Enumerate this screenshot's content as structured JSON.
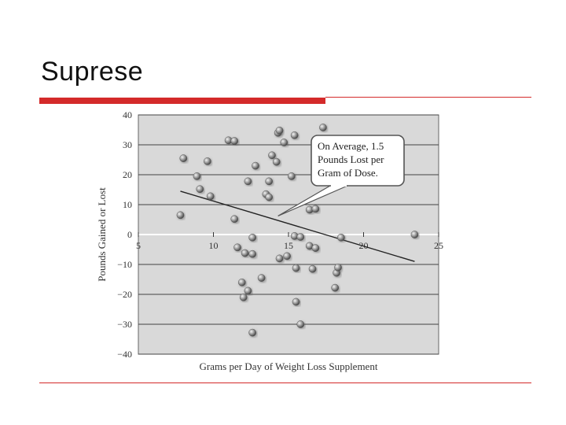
{
  "slide": {
    "title": "Suprese"
  },
  "colors": {
    "accent": "#d42a2a",
    "plot_bg": "#d9d9d9",
    "point": "#8a8a8a"
  },
  "chart_data": {
    "type": "scatter",
    "title": "",
    "xlabel": "Grams per Day of Weight Loss Supplement",
    "ylabel": "Pounds Gained or Lost",
    "xlim": [
      5,
      25
    ],
    "ylim": [
      -40,
      40
    ],
    "x_ticks": [
      "5",
      "10",
      "15",
      "20",
      "25"
    ],
    "y_ticks": [
      "40",
      "30",
      "20",
      "10",
      "0",
      "−10",
      "−20",
      "−30",
      "−40"
    ],
    "grid": "horizontal",
    "points": [
      {
        "x": 7.8,
        "y": 6.5
      },
      {
        "x": 8.0,
        "y": 25.5
      },
      {
        "x": 8.9,
        "y": 19.5
      },
      {
        "x": 9.1,
        "y": 15.2
      },
      {
        "x": 9.6,
        "y": 24.5
      },
      {
        "x": 9.8,
        "y": 12.8
      },
      {
        "x": 11.0,
        "y": 31.5
      },
      {
        "x": 11.4,
        "y": 31.3
      },
      {
        "x": 11.4,
        "y": 5.2
      },
      {
        "x": 11.6,
        "y": -4.3
      },
      {
        "x": 11.9,
        "y": -16.0
      },
      {
        "x": 12.0,
        "y": -21.0
      },
      {
        "x": 12.1,
        "y": -6.2
      },
      {
        "x": 12.3,
        "y": 17.8
      },
      {
        "x": 12.3,
        "y": -18.8
      },
      {
        "x": 12.6,
        "y": -1.0
      },
      {
        "x": 12.6,
        "y": -6.5
      },
      {
        "x": 12.6,
        "y": -32.8
      },
      {
        "x": 12.8,
        "y": 23.0
      },
      {
        "x": 13.2,
        "y": -14.5
      },
      {
        "x": 13.5,
        "y": 13.5
      },
      {
        "x": 13.7,
        "y": 12.5
      },
      {
        "x": 13.7,
        "y": 17.8
      },
      {
        "x": 13.9,
        "y": 26.5
      },
      {
        "x": 14.2,
        "y": 24.3
      },
      {
        "x": 14.3,
        "y": 34.0
      },
      {
        "x": 14.4,
        "y": 34.8
      },
      {
        "x": 14.4,
        "y": -8.0
      },
      {
        "x": 14.7,
        "y": 30.8
      },
      {
        "x": 14.9,
        "y": -7.2
      },
      {
        "x": 15.2,
        "y": 19.5
      },
      {
        "x": 15.4,
        "y": 33.2
      },
      {
        "x": 15.4,
        "y": -0.5
      },
      {
        "x": 15.5,
        "y": -11.2
      },
      {
        "x": 15.5,
        "y": -22.5
      },
      {
        "x": 15.8,
        "y": -0.8
      },
      {
        "x": 15.8,
        "y": -30.0
      },
      {
        "x": 16.4,
        "y": -3.8
      },
      {
        "x": 16.4,
        "y": 8.3
      },
      {
        "x": 16.6,
        "y": -11.5
      },
      {
        "x": 16.8,
        "y": 8.6
      },
      {
        "x": 16.8,
        "y": -4.5
      },
      {
        "x": 17.3,
        "y": 35.8
      },
      {
        "x": 18.1,
        "y": -17.8
      },
      {
        "x": 18.2,
        "y": -12.8
      },
      {
        "x": 18.3,
        "y": -11.0
      },
      {
        "x": 18.5,
        "y": -1.0
      },
      {
        "x": 23.4,
        "y": 0.0
      }
    ],
    "trend_line": {
      "x": [
        7.8,
        23.4
      ],
      "y": [
        14.5,
        -9.0
      ]
    },
    "annotation": {
      "lines": [
        "On Average, 1.5",
        "Pounds Lost per",
        "Gram of Dose."
      ]
    }
  }
}
